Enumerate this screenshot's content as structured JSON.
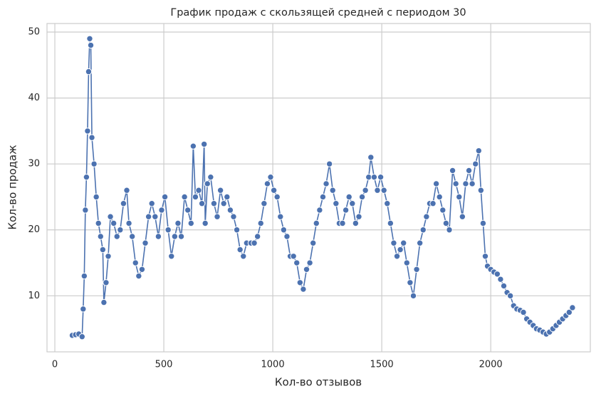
{
  "chart_data": {
    "type": "line",
    "title": "График продаж с скользящей средней с периодом 30",
    "x_label": "Кол-во отзывов",
    "y_label": "Кол-во продаж",
    "color": "#4c72b0",
    "grid": true,
    "xlim": [
      -36,
      2457
    ],
    "ylim": [
      1.5,
      51.3
    ],
    "xticks": [
      0,
      500,
      1000,
      1500,
      2000
    ],
    "yticks": [
      10,
      20,
      30,
      40,
      50
    ],
    "x": [
      80,
      95,
      110,
      125,
      130,
      135,
      140,
      145,
      150,
      155,
      160,
      165,
      170,
      180,
      190,
      200,
      210,
      220,
      225,
      235,
      245,
      255,
      270,
      285,
      300,
      315,
      330,
      340,
      355,
      370,
      385,
      400,
      415,
      430,
      445,
      460,
      475,
      490,
      505,
      520,
      535,
      550,
      565,
      580,
      595,
      610,
      625,
      635,
      645,
      660,
      675,
      685,
      690,
      700,
      715,
      730,
      745,
      760,
      775,
      790,
      805,
      820,
      835,
      850,
      865,
      880,
      900,
      915,
      930,
      945,
      960,
      975,
      990,
      1005,
      1020,
      1035,
      1050,
      1065,
      1080,
      1095,
      1110,
      1125,
      1140,
      1155,
      1170,
      1185,
      1200,
      1215,
      1230,
      1245,
      1260,
      1275,
      1290,
      1305,
      1320,
      1335,
      1350,
      1365,
      1380,
      1395,
      1410,
      1425,
      1440,
      1450,
      1465,
      1480,
      1495,
      1510,
      1525,
      1540,
      1555,
      1570,
      1585,
      1600,
      1615,
      1630,
      1645,
      1660,
      1675,
      1690,
      1705,
      1720,
      1735,
      1750,
      1765,
      1780,
      1795,
      1810,
      1825,
      1840,
      1855,
      1870,
      1885,
      1900,
      1915,
      1930,
      1945,
      1955,
      1965,
      1975,
      1985,
      2000,
      2015,
      2030,
      2045,
      2060,
      2075,
      2090,
      2105,
      2120,
      2135,
      2150,
      2165,
      2180,
      2195,
      2210,
      2225,
      2240,
      2255,
      2270,
      2285,
      2300,
      2315,
      2330,
      2345,
      2360,
      2375
    ],
    "values": [
      4,
      4.1,
      4.2,
      3.8,
      8,
      13,
      23,
      28,
      35,
      44,
      49,
      48,
      34,
      30,
      25,
      21,
      19,
      17,
      9,
      12,
      16,
      22,
      21,
      19,
      20,
      24,
      26,
      21,
      19,
      15,
      13,
      14,
      18,
      22,
      24,
      22,
      19,
      23,
      25,
      20,
      16,
      19,
      21,
      19,
      25,
      23,
      21,
      32.7,
      25,
      26,
      24,
      33,
      21,
      27,
      28,
      24,
      22,
      26,
      24,
      25,
      23,
      22,
      20,
      17,
      16,
      18,
      18,
      18,
      19,
      21,
      24,
      27,
      28,
      26,
      25,
      22,
      20,
      19,
      16,
      16,
      15,
      12,
      11,
      14,
      15,
      18,
      21,
      23,
      25,
      27,
      30,
      26,
      24,
      21,
      21,
      23,
      25,
      24,
      21,
      22,
      25,
      26,
      28,
      31,
      28,
      26,
      28,
      26,
      24,
      21,
      18,
      16,
      17,
      18,
      15,
      12,
      10,
      14,
      18,
      20,
      22,
      24,
      24,
      27,
      25,
      23,
      21,
      20,
      29,
      27,
      25,
      22,
      27,
      29,
      27,
      30,
      32,
      26,
      21,
      16,
      14.5,
      14,
      13.6,
      13.3,
      12.5,
      11.5,
      10.5,
      10,
      8.5,
      8,
      7.8,
      7.5,
      6.5,
      6,
      5.5,
      5,
      4.8,
      4.5,
      4.2,
      4.5,
      5,
      5.5,
      6,
      6.5,
      7,
      7.5,
      8.2
    ]
  }
}
